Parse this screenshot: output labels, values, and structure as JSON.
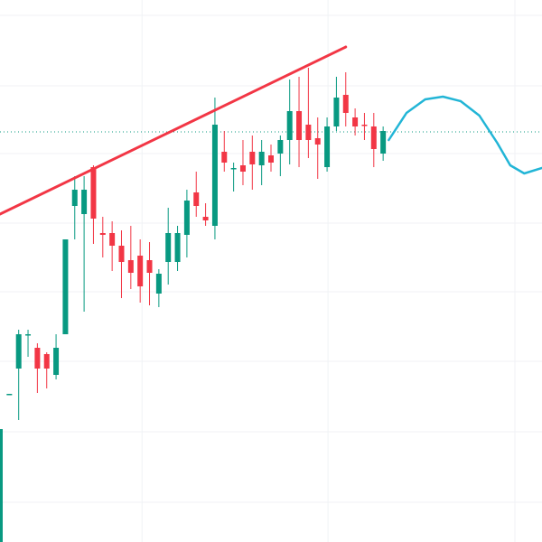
{
  "chart_data": {
    "type": "candlestick",
    "x": [
      0,
      1,
      2,
      3,
      4,
      5,
      6,
      7,
      8,
      9,
      10,
      11,
      12,
      13,
      14,
      15,
      16,
      17,
      18,
      19,
      20,
      21,
      22,
      23,
      24,
      25,
      26,
      27,
      28,
      29,
      30,
      31,
      32,
      33,
      34,
      35,
      36,
      37,
      38,
      39,
      40,
      41
    ],
    "open": [
      0,
      164,
      192,
      229,
      215,
      208,
      185,
      230,
      372,
      363,
      415,
      342,
      342,
      328,
      312,
      317,
      312,
      275,
      310,
      310,
      340,
      387,
      360,
      350,
      432,
      413,
      417,
      432,
      417,
      428,
      430,
      445,
      477,
      462,
      447,
      415,
      460,
      495,
      470,
      462,
      460,
      430
    ],
    "high": [
      125,
      164,
      235,
      235,
      220,
      210,
      230,
      335,
      405,
      405,
      417,
      360,
      355,
      345,
      350,
      335,
      332,
      302,
      370,
      350,
      390,
      410,
      375,
      492,
      455,
      420,
      445,
      450,
      445,
      440,
      450,
      512,
      515,
      525,
      470,
      470,
      515,
      520,
      480,
      475,
      475,
      460
    ],
    "low": [
      0,
      164,
      135,
      205,
      165,
      170,
      180,
      230,
      335,
      255,
      330,
      315,
      300,
      270,
      280,
      265,
      262,
      260,
      285,
      300,
      315,
      360,
      350,
      335,
      410,
      388,
      395,
      390,
      395,
      410,
      405,
      418,
      415,
      425,
      402,
      410,
      455,
      460,
      450,
      445,
      415,
      422
    ],
    "close": [
      125,
      164,
      230,
      230,
      192,
      192,
      215,
      335,
      390,
      390,
      358,
      340,
      328,
      310,
      298,
      283,
      298,
      297,
      342,
      342,
      378,
      372,
      356,
      462,
      420,
      414,
      410,
      418,
      432,
      420,
      445,
      477,
      445,
      445,
      440,
      460,
      492,
      475,
      460,
      461,
      435,
      455
    ],
    "up_color": "#089981",
    "down_color": "#f23645",
    "trendline": {
      "x": [
        0,
        37
      ],
      "values": [
        363,
        548
      ],
      "color": "#f23645"
    },
    "forecast": {
      "x": [
        41.6,
        43.5,
        45.5,
        47.4,
        49.3,
        51.3,
        53.2,
        54.6,
        56.1,
        58.0
      ],
      "values": [
        445,
        475,
        490,
        493,
        488,
        472,
        442,
        417,
        408,
        414
      ],
      "color": "#22b5d6"
    },
    "price_line": {
      "value": 454,
      "color": "#089981"
    },
    "xlim": [
      0,
      58
    ],
    "ylim": [
      0,
      600
    ],
    "xticks": [
      15.2,
      35.1,
      55.1
    ],
    "yticks": [
      44,
      122,
      200,
      277,
      353,
      430,
      505,
      583
    ],
    "grid": true
  }
}
